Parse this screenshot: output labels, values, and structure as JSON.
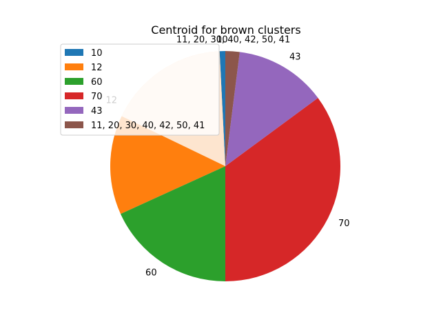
{
  "chart_data": {
    "type": "pie",
    "title": "Centroid for brown clusters",
    "categories": [
      "10",
      "12",
      "60",
      "70",
      "43",
      "11, 20, 30, 40, 42, 50, 41"
    ],
    "values": [
      0.8,
      31.0,
      18.2,
      35.1,
      12.9,
      2.0
    ],
    "colors": [
      "#1f77b4",
      "#ff7f0e",
      "#2ca02c",
      "#d62728",
      "#9467bd",
      "#8c564b"
    ],
    "explode_highlight": {
      "category": "12",
      "color": "#fde5cf"
    },
    "legend_placement": "upper-left",
    "start": "top",
    "direction": "counterclockwise"
  }
}
